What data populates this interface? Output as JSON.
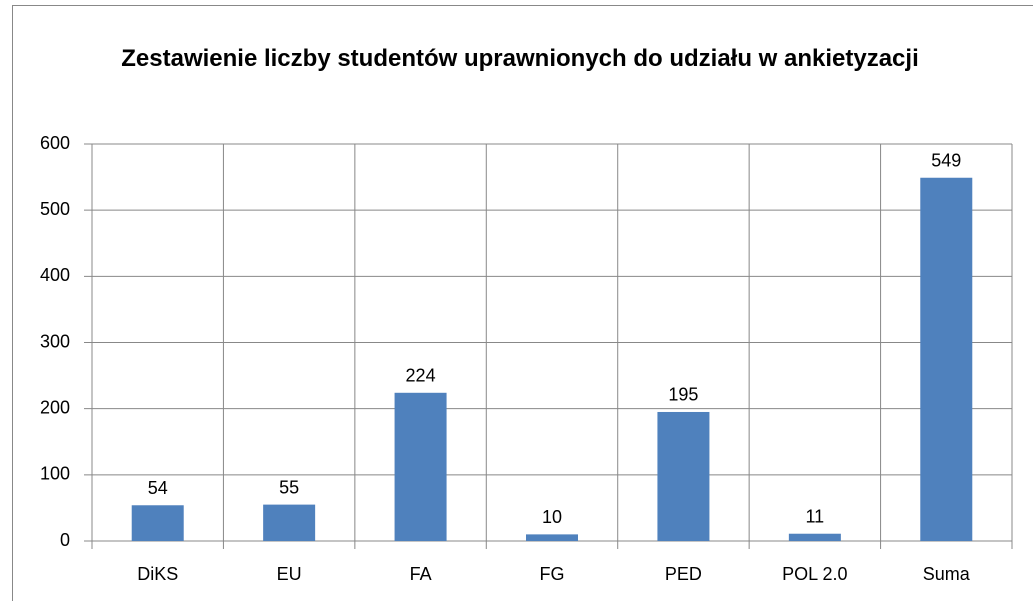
{
  "chart_data": {
    "type": "bar",
    "title": "Zestawienie liczby studentów uprawnionych do udziału w ankietyzacji",
    "categories": [
      "DiKS",
      "EU",
      "FA",
      "FG",
      "PED",
      "POL 2.0",
      "Suma"
    ],
    "values": [
      54,
      55,
      224,
      10,
      195,
      11,
      549
    ],
    "color": "#4f81bd",
    "ylim": [
      0,
      600
    ],
    "yticks": [
      0,
      100,
      200,
      300,
      400,
      500,
      600
    ],
    "grid": true
  }
}
